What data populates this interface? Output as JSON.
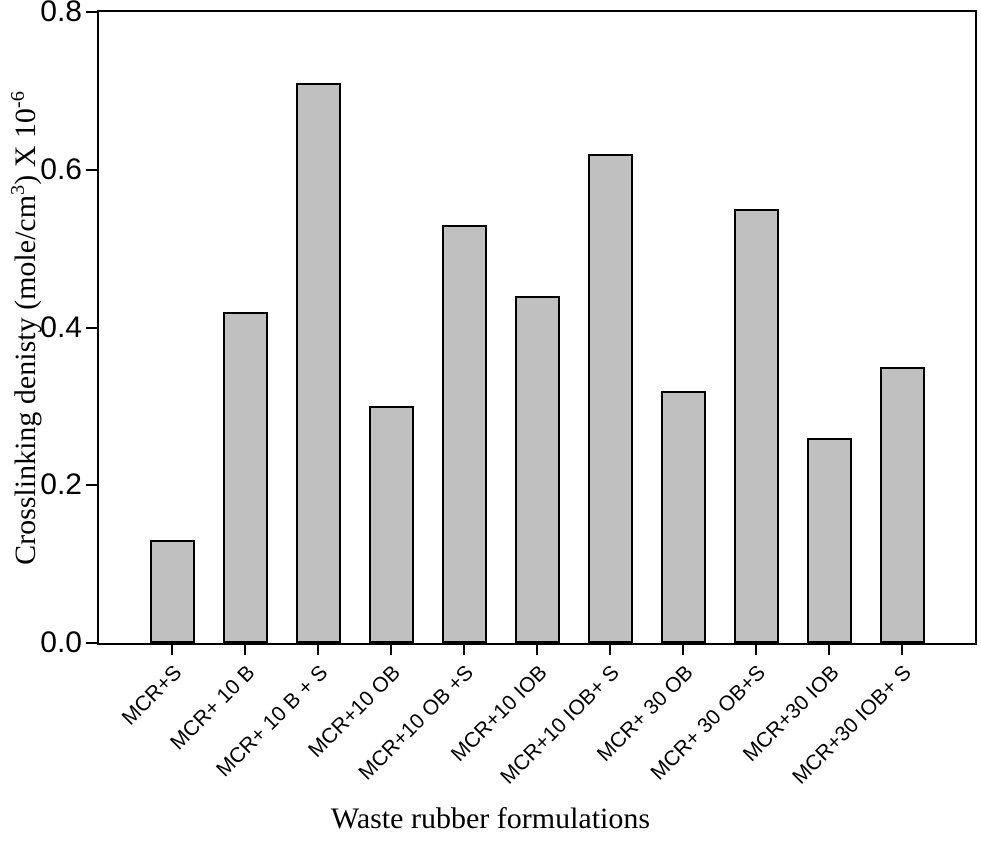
{
  "figure": {
    "background_color": "#ffffff",
    "axis_color": "#000000"
  },
  "chart_data": {
    "type": "bar",
    "title": "",
    "xlabel": "Waste rubber formulations",
    "ylabel_plain": "Crosslinking denisty (mole/cm3) X 10-6",
    "ylabel_parts": {
      "pre": "Crosslinking denisty (mole/cm",
      "sup1": "3",
      "mid": ") X 10",
      "sup2": "-6"
    },
    "categories": [
      "MCR+S",
      "MCR+ 10 B",
      "MCR+ 10 B + S",
      "MCR+10 OB",
      "MCR+10 OB +S",
      "MCR+10 IOB",
      "MCR+10 IOB+ S",
      "MCR+ 30 OB",
      "MCR+ 30 OB+S",
      "MCR+30 IOB",
      "MCR+30 IOB+ S"
    ],
    "values": [
      0.13,
      0.42,
      0.71,
      0.3,
      0.53,
      0.44,
      0.62,
      0.32,
      0.55,
      0.26,
      0.35
    ],
    "ylim": [
      0.0,
      0.8
    ],
    "yticks": [
      0.0,
      0.2,
      0.4,
      0.6,
      0.8
    ],
    "ytick_labels": [
      "0.0",
      "0.2",
      "0.4",
      "0.6",
      "0.8"
    ],
    "bar_color": "#c0c0c0",
    "bar_border_color": "#000000",
    "grid": false,
    "legend": "none"
  }
}
